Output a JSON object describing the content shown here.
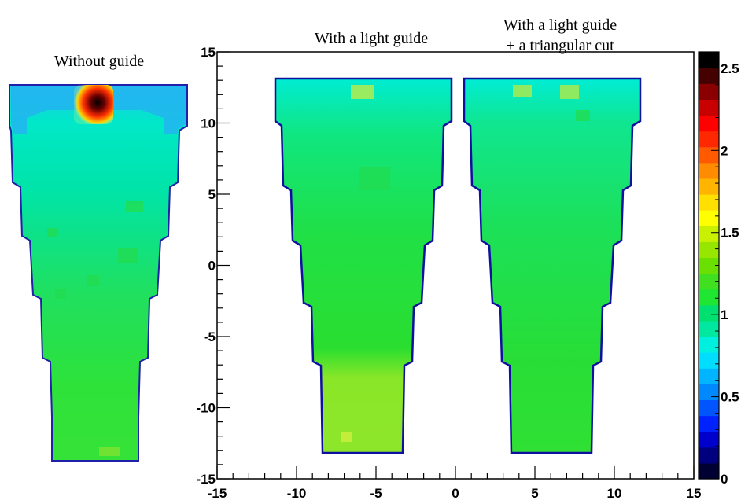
{
  "chart_data": {
    "type": "heatmap",
    "panels": [
      {
        "title": "Without guide",
        "title_lines": [
          "Without guide"
        ],
        "hotspot": true,
        "variant": "no-guide"
      },
      {
        "title": "With a light guide",
        "title_lines": [
          "With a light guide"
        ],
        "variant": "guide"
      },
      {
        "title": "With a light guide + a triangular cut",
        "title_lines": [
          "With a light guide",
          "+ a triangular cut"
        ],
        "variant": "guide-cut"
      }
    ],
    "x_ticks": [
      "-15",
      "-10",
      "-5",
      "0",
      "5",
      "10",
      "15"
    ],
    "y_ticks": [
      "15",
      "10",
      "5",
      "0",
      "-5",
      "-10",
      "-15"
    ],
    "x_tick_values": [
      -15,
      -10,
      -5,
      0,
      5,
      10,
      15
    ],
    "y_tick_values": [
      15,
      10,
      5,
      0,
      -5,
      -10,
      -15
    ],
    "xlim": [
      -15,
      15
    ],
    "ylim": [
      -15,
      15
    ],
    "colorbar": {
      "min": 0,
      "max": 2.6,
      "ticks": [
        "2.5",
        "2",
        "1.5",
        "1",
        "0.5",
        "0"
      ],
      "tick_values": [
        2.5,
        2,
        1.5,
        1,
        0.5,
        0
      ],
      "colors": [
        "#000033",
        "#00007f",
        "#0000cc",
        "#0022ff",
        "#0055ff",
        "#0088ff",
        "#00b4ff",
        "#00ddff",
        "#00f0e0",
        "#00e8a0",
        "#00e070",
        "#1ee632",
        "#40e020",
        "#6ae000",
        "#96e600",
        "#c8f000",
        "#ffff00",
        "#ffe000",
        "#ffb400",
        "#ff8c00",
        "#ff5a00",
        "#ff2800",
        "#ff0000",
        "#c80000",
        "#8a0000",
        "#450000",
        "#000000"
      ]
    }
  }
}
